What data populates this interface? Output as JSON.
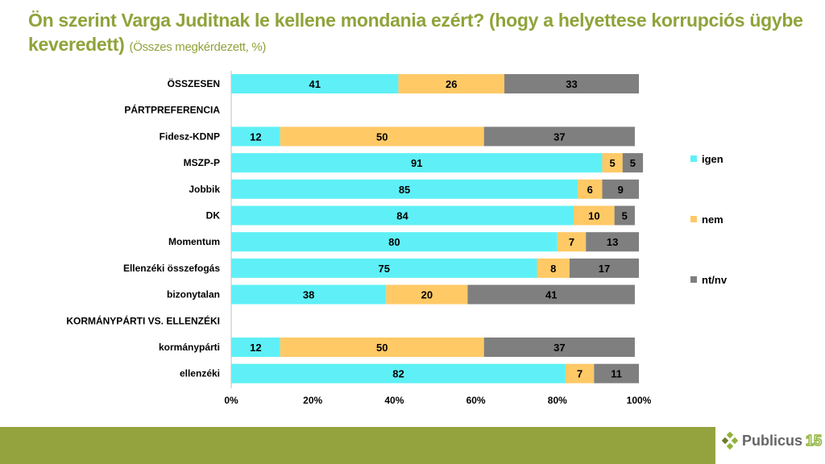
{
  "title": {
    "main": "Ön szerint Varga Juditnak le kellene mondania ezért? (hogy a helyettese korrupciós ügybe keveredett)",
    "subtitle": "(Összes megkérdezett, %)"
  },
  "chart_data": {
    "type": "bar",
    "orientation": "horizontal",
    "stacked": "percent",
    "categories": [
      "ÖSSZESEN",
      "PÁRTPREFERENCIA",
      "Fidesz-KDNP",
      "MSZP-P",
      "Jobbik",
      "DK",
      "Momentum",
      "Ellenzéki összefogás",
      "bizonytalan",
      "KORMÁNYPÁRTI VS. ELLENZÉKI",
      "kormánypárti",
      "ellenzéki"
    ],
    "series": [
      {
        "name": "igen",
        "color": "#5ef0f6",
        "values": [
          41,
          null,
          12,
          91,
          85,
          84,
          80,
          75,
          38,
          null,
          12,
          82
        ]
      },
      {
        "name": "nem",
        "color": "#ffc966",
        "values": [
          26,
          null,
          50,
          5,
          6,
          10,
          7,
          8,
          20,
          null,
          50,
          7
        ]
      },
      {
        "name": "nt/nv",
        "color": "#7f7f7f",
        "values": [
          33,
          null,
          37,
          5,
          9,
          5,
          13,
          17,
          41,
          null,
          37,
          11
        ]
      }
    ],
    "xlim": [
      0,
      100
    ],
    "xticks": [
      "0%",
      "20%",
      "40%",
      "60%",
      "80%",
      "100%"
    ],
    "legend_position": "right"
  },
  "footer": {
    "logo_word": "Publicus",
    "logo_number": "15"
  }
}
